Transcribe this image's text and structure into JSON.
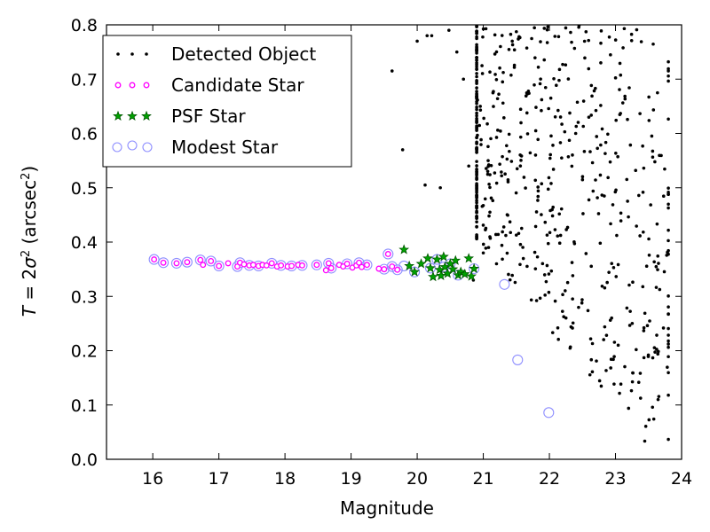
{
  "chart_data": {
    "type": "scatter",
    "title": "",
    "xlabel": "Magnitude",
    "ylabel_parts": {
      "T": "T",
      "equals": " = 2",
      "sigma": "σ",
      "sq": "2",
      "unit_open": " (arcsec",
      "unit_sq": "2",
      "unit_close": ")"
    },
    "xlim": [
      15.3,
      24
    ],
    "ylim": [
      0,
      0.8
    ],
    "xticks": [
      "16",
      "17",
      "18",
      "19",
      "20",
      "21",
      "22",
      "23",
      "24"
    ],
    "yticks": [
      "0.0",
      "0.1",
      "0.2",
      "0.3",
      "0.4",
      "0.5",
      "0.6",
      "0.7",
      "0.8"
    ],
    "legend_position": "top-left",
    "colors": {
      "detected": "#000000",
      "candidate": "#ff00ff",
      "psf_fill": "#00a000",
      "psf_edge": "#005000",
      "modest": "#8f8fff"
    },
    "series": [
      {
        "name": "Detected Object",
        "marker": "dot",
        "generated": true,
        "x_range": [
          19.6,
          23.8
        ],
        "y_range": [
          0.02,
          0.8
        ],
        "approx_count": 600
      },
      {
        "name": "Candidate Star",
        "marker": "circle",
        "x": [
          16.02,
          16.16,
          16.36,
          16.52,
          16.72,
          16.76,
          16.88,
          17.0,
          17.14,
          17.28,
          17.32,
          17.38,
          17.46,
          17.52,
          17.6,
          17.66,
          17.72,
          17.8,
          17.88,
          17.94,
          18.04,
          18.1,
          18.2,
          18.26,
          18.48,
          18.62,
          18.66,
          18.7,
          18.82,
          18.88,
          18.94,
          19.02,
          19.08,
          19.12,
          19.16,
          19.24,
          19.42,
          19.5,
          19.56,
          19.62,
          19.7
        ],
        "y": [
          0.368,
          0.362,
          0.361,
          0.363,
          0.367,
          0.358,
          0.365,
          0.356,
          0.361,
          0.355,
          0.362,
          0.359,
          0.357,
          0.358,
          0.356,
          0.358,
          0.357,
          0.361,
          0.355,
          0.357,
          0.355,
          0.356,
          0.358,
          0.357,
          0.358,
          0.348,
          0.361,
          0.352,
          0.358,
          0.355,
          0.36,
          0.353,
          0.357,
          0.362,
          0.354,
          0.358,
          0.351,
          0.35,
          0.378,
          0.355,
          0.349
        ]
      },
      {
        "name": "PSF Star",
        "marker": "star",
        "x": [
          19.8,
          19.88,
          19.96,
          20.06,
          20.16,
          20.2,
          20.24,
          20.3,
          20.34,
          20.36,
          20.4,
          20.42,
          20.46,
          20.5,
          20.54,
          20.58,
          20.62,
          20.66,
          20.72,
          20.78,
          20.82,
          20.86
        ],
        "y": [
          0.386,
          0.356,
          0.345,
          0.36,
          0.37,
          0.352,
          0.336,
          0.368,
          0.349,
          0.338,
          0.373,
          0.354,
          0.342,
          0.36,
          0.35,
          0.366,
          0.339,
          0.345,
          0.341,
          0.37,
          0.337,
          0.351
        ]
      },
      {
        "name": "Modest Star",
        "marker": "open-circle",
        "x": [
          16.02,
          16.16,
          16.36,
          16.52,
          16.72,
          16.88,
          17.0,
          17.28,
          17.32,
          17.46,
          17.6,
          17.8,
          17.94,
          18.1,
          18.26,
          18.48,
          18.66,
          18.7,
          18.94,
          19.12,
          19.24,
          19.5,
          19.56,
          19.62,
          19.7,
          19.8,
          19.96,
          20.2,
          20.3,
          20.4,
          20.5,
          20.62,
          20.86,
          21.32,
          21.52,
          21.99
        ],
        "y": [
          0.368,
          0.362,
          0.361,
          0.363,
          0.367,
          0.365,
          0.356,
          0.355,
          0.362,
          0.357,
          0.356,
          0.361,
          0.357,
          0.356,
          0.357,
          0.358,
          0.361,
          0.352,
          0.36,
          0.362,
          0.358,
          0.35,
          0.378,
          0.355,
          0.349,
          0.356,
          0.345,
          0.352,
          0.368,
          0.354,
          0.36,
          0.339,
          0.351,
          0.322,
          0.183,
          0.086
        ]
      }
    ]
  }
}
